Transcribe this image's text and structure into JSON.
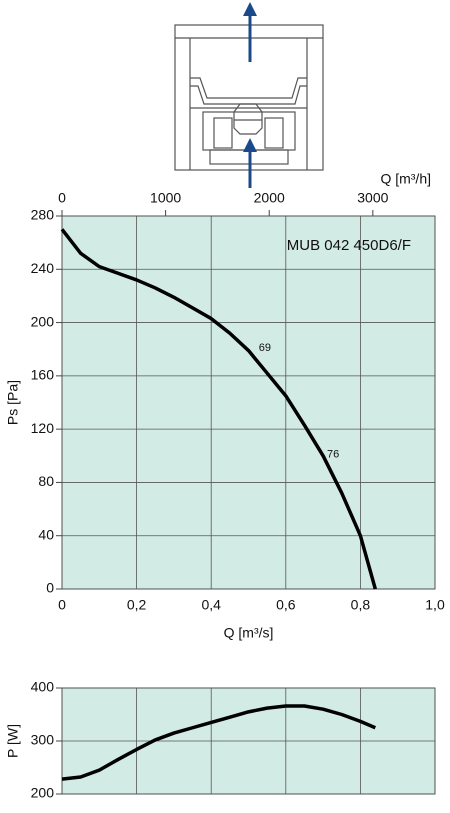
{
  "chart_data": [
    {
      "type": "line",
      "title": "MUB 042 450D6/F",
      "xlabel": "Q [m³/s]",
      "ylabel": "Ps [Pa]",
      "x2label": "Q [m³/h]",
      "x": [
        0,
        0.05,
        0.1,
        0.15,
        0.2,
        0.25,
        0.3,
        0.35,
        0.4,
        0.45,
        0.5,
        0.55,
        0.6,
        0.65,
        0.7,
        0.75,
        0.8,
        0.84
      ],
      "values": [
        270,
        252,
        242,
        237,
        232,
        226,
        219,
        211,
        203,
        192,
        179,
        162,
        145,
        123,
        100,
        72,
        40,
        0
      ],
      "color": "#000000",
      "xlim": [
        0,
        1
      ],
      "xticks": [
        0,
        {
          "value": 0.2,
          "label": "0,2"
        },
        {
          "value": 0.4,
          "label": "0,4"
        },
        {
          "value": 0.6,
          "label": "0,6"
        },
        {
          "value": 0.8,
          "label": "0,8"
        },
        {
          "value": 1,
          "label": "1,0"
        }
      ],
      "x2lim": [
        0,
        3600
      ],
      "x2ticks": [
        0,
        1000,
        2000,
        3000
      ],
      "ylim": [
        0,
        280
      ],
      "yticks": [
        0,
        40,
        80,
        120,
        160,
        200,
        240,
        280
      ],
      "grid": true,
      "background": "#d3ebe5",
      "annotations": [
        {
          "text": "69",
          "x": 0.544,
          "y": 181
        },
        {
          "text": "76",
          "x": 0.727,
          "y": 101
        }
      ]
    },
    {
      "type": "line",
      "ylabel": "P [W]",
      "x": [
        0,
        0.05,
        0.1,
        0.15,
        0.2,
        0.25,
        0.3,
        0.35,
        0.4,
        0.45,
        0.5,
        0.55,
        0.6,
        0.65,
        0.7,
        0.75,
        0.8,
        0.84
      ],
      "values": [
        228,
        232,
        245,
        265,
        284,
        302,
        315,
        325,
        335,
        345,
        355,
        362,
        366,
        366,
        360,
        350,
        337,
        325
      ],
      "color": "#000000",
      "xlim": [
        0,
        1
      ],
      "xticks": [
        0,
        0.2,
        0.4,
        0.6,
        0.8,
        1
      ],
      "show_xtick_labels": false,
      "ylim": [
        200,
        400
      ],
      "yticks": [
        200,
        300,
        400
      ],
      "grid": true,
      "background": "#d3ebe5"
    }
  ]
}
